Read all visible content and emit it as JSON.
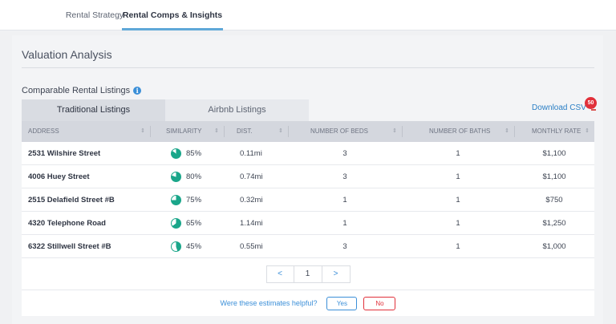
{
  "tabs": [
    {
      "label": "Rental Strategy",
      "active": false
    },
    {
      "label": "Rental Comps & Insights",
      "active": true
    }
  ],
  "page_title": "Valuation Analysis",
  "section": {
    "title": "Comparable Rental Listings",
    "info_icon": "info-icon"
  },
  "listing_tabs": [
    {
      "label": "Traditional Listings",
      "active": true
    },
    {
      "label": "Airbnb Listings",
      "active": false
    }
  ],
  "download": {
    "label": "Download CSV",
    "icon": "download-icon",
    "badge": "50"
  },
  "table": {
    "columns": [
      "ADDRESS",
      "SIMILARITY",
      "DIST.",
      "NUMBER OF BEDS",
      "NUMBER OF BATHS",
      "MONTHLY RATE"
    ],
    "rows": [
      {
        "address": "2531 Wilshire Street",
        "similarity": "85%",
        "similarity_value": 85,
        "dist": "0.11mi",
        "beds": "3",
        "baths": "1",
        "rate": "$1,100"
      },
      {
        "address": "4006 Huey Street",
        "similarity": "80%",
        "similarity_value": 80,
        "dist": "0.74mi",
        "beds": "3",
        "baths": "1",
        "rate": "$1,100"
      },
      {
        "address": "2515 Delafield Street #B",
        "similarity": "75%",
        "similarity_value": 75,
        "dist": "0.32mi",
        "beds": "1",
        "baths": "1",
        "rate": "$750"
      },
      {
        "address": "4320 Telephone Road",
        "similarity": "65%",
        "similarity_value": 65,
        "dist": "1.14mi",
        "beds": "1",
        "baths": "1",
        "rate": "$1,250"
      },
      {
        "address": "6322 Stillwell Street #B",
        "similarity": "45%",
        "similarity_value": 45,
        "dist": "0.55mi",
        "beds": "3",
        "baths": "1",
        "rate": "$1,000"
      }
    ]
  },
  "pagination": {
    "prev": "<",
    "page": "1",
    "next": ">"
  },
  "feedback": {
    "question": "Were these estimates helpful?",
    "yes": "Yes",
    "no": "No"
  },
  "colors": {
    "accent": "#3b8fd8",
    "pie": "#1aa68a",
    "danger": "#e1303a"
  }
}
